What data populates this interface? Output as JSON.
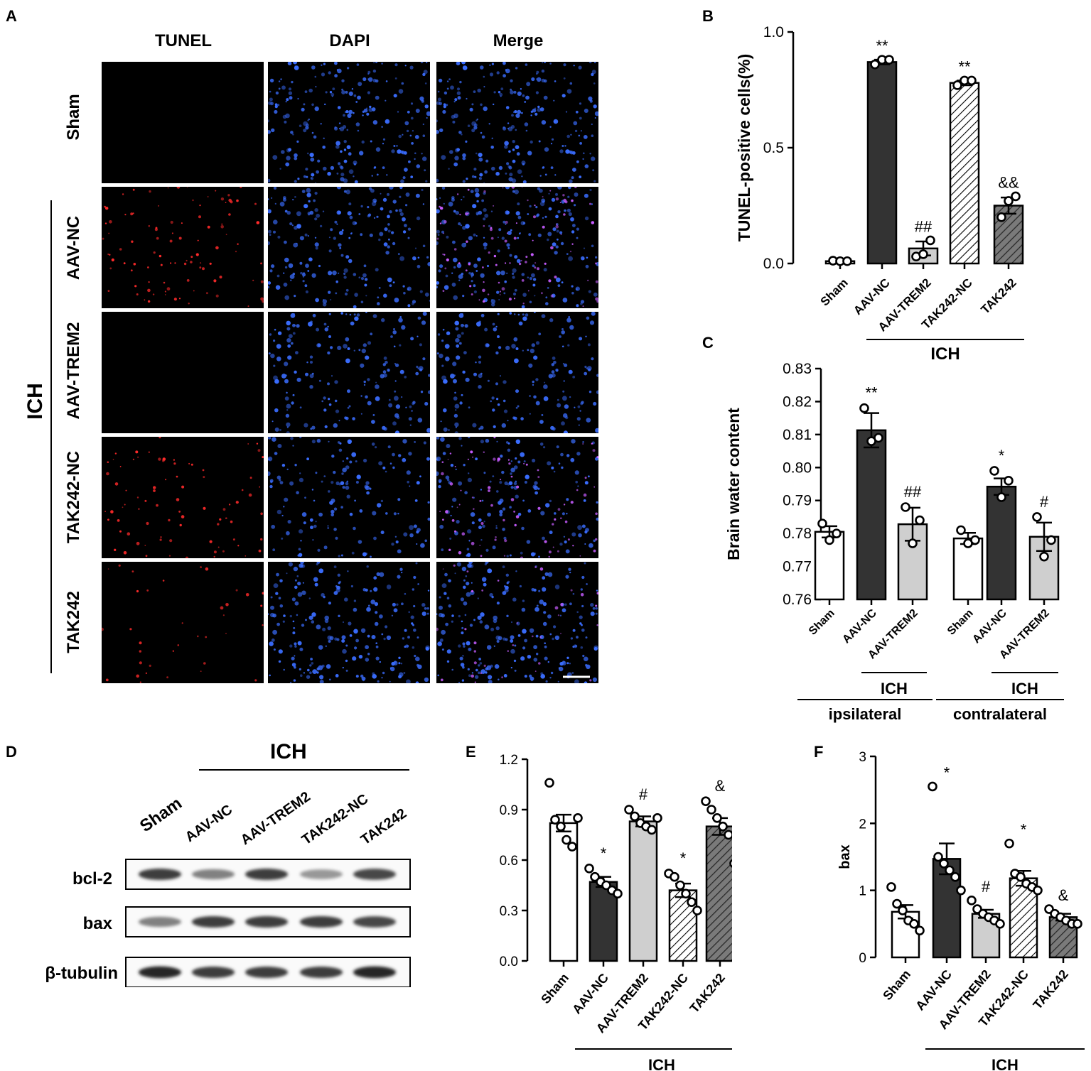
{
  "panel_letters": {
    "A": "A",
    "B": "B",
    "C": "C",
    "D": "D",
    "E": "E",
    "F": "F"
  },
  "panel_a": {
    "columns": [
      "TUNEL",
      "DAPI",
      "Merge"
    ],
    "rows": [
      "Sham",
      "AAV-NC",
      "AAV-TREM2",
      "TAK242-NC",
      "TAK242"
    ],
    "group_label": "ICH",
    "tunel_density": [
      0.0,
      0.55,
      0.0,
      0.45,
      0.2
    ],
    "dapi_density": [
      0.9,
      0.8,
      0.7,
      0.6,
      0.85
    ],
    "colors": {
      "tunel": "#ff2a2a",
      "dapi": "#3a6dff",
      "merge_magenta": "#c65cff",
      "background": "#000000"
    }
  },
  "panel_d": {
    "ich_label": "ICH",
    "lanes": [
      "Sham",
      "AAV-NC",
      "AAV-TREM2",
      "TAK242-NC",
      "TAK242"
    ],
    "proteins": [
      "bcl-2",
      "bax",
      "β-tubulin"
    ],
    "band_intensity": {
      "bcl-2": [
        0.85,
        0.55,
        0.85,
        0.45,
        0.8
      ],
      "bax": [
        0.55,
        0.85,
        0.85,
        0.85,
        0.8
      ],
      "β-tubulin": [
        0.95,
        0.85,
        0.85,
        0.85,
        0.95
      ]
    }
  },
  "chart_data": [
    {
      "id": "B",
      "type": "bar",
      "ylabel": "TUNEL-positive cells(%)",
      "ylim": [
        0,
        1.0
      ],
      "yticks": [
        "0.0",
        "0.5",
        "1.0"
      ],
      "yticks_values": [
        0,
        0.5,
        1.0
      ],
      "categories": [
        "Sham",
        "AAV-NC",
        "AAV-TREM2",
        "TAK242-NC",
        "TAK242"
      ],
      "values": [
        0.01,
        0.87,
        0.065,
        0.78,
        0.25
      ],
      "errors": [
        0.003,
        0.01,
        0.03,
        0.01,
        0.035
      ],
      "points": [
        [
          0.012,
          0.01,
          0.01
        ],
        [
          0.86,
          0.88,
          0.88
        ],
        [
          0.03,
          0.04,
          0.1
        ],
        [
          0.77,
          0.79,
          0.79
        ],
        [
          0.2,
          0.27,
          0.29
        ]
      ],
      "annotations": [
        "",
        "**",
        "##",
        "**",
        "&&"
      ],
      "fills": [
        "white",
        "dark",
        "light",
        "hatch-light",
        "hatch-dark"
      ],
      "group_label": "ICH",
      "group_range": [
        1,
        4
      ]
    },
    {
      "id": "C",
      "type": "bar",
      "ylabel": "Brain water content",
      "ylim": [
        0.76,
        0.83
      ],
      "yticks": [
        "0.76",
        "0.77",
        "0.78",
        "0.79",
        "0.80",
        "0.81",
        "0.82",
        "0.83"
      ],
      "yticks_values": [
        0.76,
        0.77,
        0.78,
        0.79,
        0.8,
        0.81,
        0.82,
        0.83
      ],
      "categories": [
        "Sham",
        "AAV-NC",
        "AAV-TREM2",
        "Sham",
        "AAV-NC",
        "AAV-TREM2"
      ],
      "values": [
        0.7805,
        0.8113,
        0.7828,
        0.7785,
        0.7942,
        0.779
      ],
      "errors": [
        0.0017,
        0.0052,
        0.005,
        0.0017,
        0.0025,
        0.0043
      ],
      "points": [
        [
          0.783,
          0.778,
          0.78
        ],
        [
          0.818,
          0.808,
          0.809
        ],
        [
          0.788,
          0.777,
          0.784
        ],
        [
          0.781,
          0.777,
          0.778
        ],
        [
          0.799,
          0.791,
          0.796
        ],
        [
          0.785,
          0.773,
          0.778
        ]
      ],
      "annotations": [
        "",
        "**",
        "##",
        "",
        "*",
        "#"
      ],
      "fills": [
        "white",
        "dark",
        "light",
        "white",
        "dark",
        "light"
      ],
      "subgroups": [
        {
          "label": "ICH",
          "range": [
            1,
            2
          ]
        },
        {
          "label": "ICH",
          "range": [
            4,
            5
          ]
        }
      ],
      "groups": [
        {
          "label": "ipsilateral",
          "range": [
            0,
            2
          ]
        },
        {
          "label": "contralateral",
          "range": [
            3,
            5
          ]
        }
      ]
    },
    {
      "id": "E",
      "type": "bar",
      "ylabel": "",
      "ylim": [
        0,
        1.2
      ],
      "yticks": [
        "0.0",
        "0.3",
        "0.6",
        "0.9",
        "1.2"
      ],
      "yticks_values": [
        0,
        0.3,
        0.6,
        0.9,
        1.2
      ],
      "categories": [
        "Sham",
        "AAV-NC",
        "AAV-TREM2",
        "TAK242-NC",
        "TAK242"
      ],
      "values": [
        0.82,
        0.47,
        0.83,
        0.42,
        0.8
      ],
      "errors": [
        0.05,
        0.03,
        0.03,
        0.04,
        0.05
      ],
      "points": [
        [
          1.06,
          0.84,
          0.8,
          0.72,
          0.68,
          0.85
        ],
        [
          0.55,
          0.5,
          0.47,
          0.45,
          0.42,
          0.4
        ],
        [
          0.9,
          0.86,
          0.82,
          0.8,
          0.78,
          0.85
        ],
        [
          0.52,
          0.5,
          0.45,
          0.4,
          0.35,
          0.3
        ],
        [
          0.95,
          0.9,
          0.85,
          0.8,
          0.75,
          0.58
        ]
      ],
      "annotations": [
        "",
        "*",
        "#",
        "*",
        "&"
      ],
      "fills": [
        "white",
        "dark",
        "light",
        "hatch-light",
        "hatch-dark"
      ],
      "group_label": "ICH",
      "group_range": [
        1,
        4
      ]
    },
    {
      "id": "F",
      "type": "bar",
      "ylabel": "bax",
      "ylim": [
        0,
        3
      ],
      "yticks": [
        "0",
        "1",
        "2",
        "3"
      ],
      "yticks_values": [
        0,
        1,
        2,
        3
      ],
      "categories": [
        "Sham",
        "AAV-NC",
        "AAV-TREM2",
        "TAK242-NC",
        "TAK242"
      ],
      "values": [
        0.68,
        1.47,
        0.65,
        1.18,
        0.6
      ],
      "errors": [
        0.1,
        0.23,
        0.06,
        0.11,
        0.05
      ],
      "points": [
        [
          1.05,
          0.8,
          0.7,
          0.55,
          0.5,
          0.4
        ],
        [
          2.55,
          1.5,
          1.4,
          1.3,
          1.2,
          1.0
        ],
        [
          0.85,
          0.72,
          0.65,
          0.6,
          0.55,
          0.5
        ],
        [
          1.7,
          1.25,
          1.2,
          1.1,
          1.05,
          1.0
        ],
        [
          0.72,
          0.65,
          0.6,
          0.55,
          0.5,
          0.5
        ]
      ],
      "annotations": [
        "",
        "*",
        "#",
        "*",
        "&"
      ],
      "fills": [
        "white",
        "dark",
        "light",
        "hatch-light",
        "hatch-dark"
      ],
      "group_label": "ICH",
      "group_range": [
        1,
        4
      ]
    }
  ]
}
